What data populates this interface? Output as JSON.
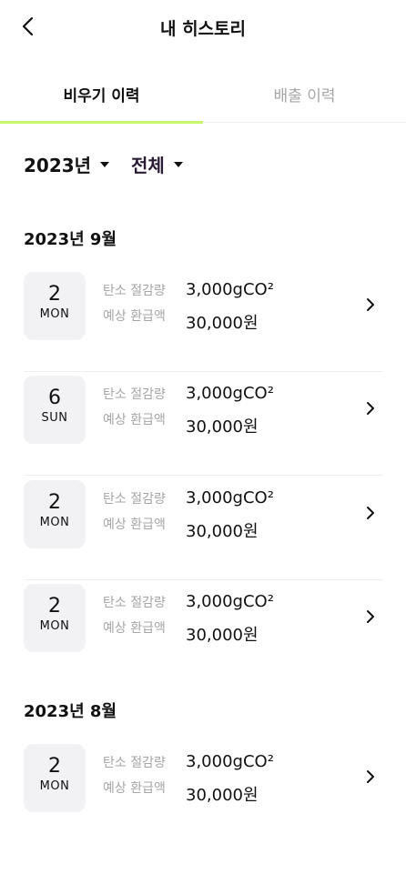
{
  "header": {
    "title": "내 히스토리",
    "back_icon": "chevron-left-icon"
  },
  "tabs": [
    {
      "label": "비우기 이력",
      "active": true
    },
    {
      "label": "배출 이력",
      "active": false
    }
  ],
  "accent_color": "#c8f56a",
  "filters": {
    "year": "2023년",
    "type": "전체"
  },
  "sections": [
    {
      "title": "2023년 9월",
      "items": [
        {
          "day": "2",
          "weekday": "MON",
          "carbon_label": "탄소 절감량",
          "carbon_value": "3,000gCO²",
          "refund_label": "예상 환급액",
          "refund_value": "30,000원"
        },
        {
          "day": "6",
          "weekday": "SUN",
          "carbon_label": "탄소 절감량",
          "carbon_value": "3,000gCO²",
          "refund_label": "예상 환급액",
          "refund_value": "30,000원"
        },
        {
          "day": "2",
          "weekday": "MON",
          "carbon_label": "탄소 절감량",
          "carbon_value": "3,000gCO²",
          "refund_label": "예상 환급액",
          "refund_value": "30,000원"
        },
        {
          "day": "2",
          "weekday": "MON",
          "carbon_label": "탄소 절감량",
          "carbon_value": "3,000gCO²",
          "refund_label": "예상 환급액",
          "refund_value": "30,000원"
        }
      ]
    },
    {
      "title": "2023년 8월",
      "items": [
        {
          "day": "2",
          "weekday": "MON",
          "carbon_label": "탄소 절감량",
          "carbon_value": "3,000gCO²",
          "refund_label": "예상 환급액",
          "refund_value": "30,000원"
        }
      ]
    }
  ]
}
